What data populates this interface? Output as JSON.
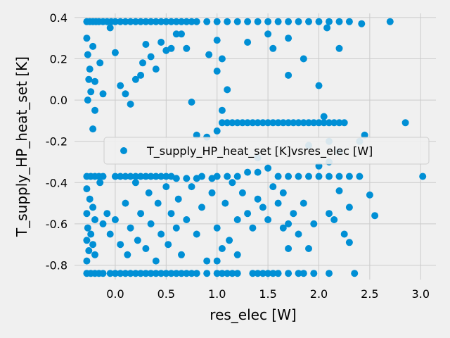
{
  "chart_data": {
    "type": "scatter",
    "xlabel": "res_elec [W]",
    "ylabel": "T_supply_HP_heat_set [K]",
    "xlim": [
      -0.4,
      3.15
    ],
    "ylim": [
      -0.87,
      0.42
    ],
    "xticks": [
      "0.0",
      "0.5",
      "1.0",
      "1.5",
      "2.0",
      "2.5",
      "3.0"
    ],
    "yticks": [
      "0.4",
      "0.2",
      "0.0",
      "-0.2",
      "-0.4",
      "-0.6",
      "-0.8"
    ],
    "grid": true,
    "legend_position": "center-right",
    "colors": {
      "point": "#008fd5",
      "background": "#f0f0f0",
      "grid": "#cbcbcb"
    },
    "series": [
      {
        "name": "T_supply_HP_heat_set [K]vsres_elec [W]",
        "points": [
          [
            -0.28,
            0.38
          ],
          [
            -0.25,
            0.38
          ],
          [
            -0.22,
            0.38
          ],
          [
            -0.19,
            0.38
          ],
          [
            -0.16,
            0.38
          ],
          [
            -0.12,
            0.38
          ],
          [
            -0.08,
            0.38
          ],
          [
            -0.04,
            0.38
          ],
          [
            0.0,
            0.38
          ],
          [
            0.05,
            0.38
          ],
          [
            0.1,
            0.38
          ],
          [
            0.15,
            0.38
          ],
          [
            0.2,
            0.38
          ],
          [
            0.25,
            0.38
          ],
          [
            0.3,
            0.38
          ],
          [
            0.35,
            0.38
          ],
          [
            0.4,
            0.38
          ],
          [
            0.45,
            0.38
          ],
          [
            0.5,
            0.38
          ],
          [
            0.55,
            0.38
          ],
          [
            0.6,
            0.38
          ],
          [
            0.65,
            0.38
          ],
          [
            0.7,
            0.38
          ],
          [
            0.75,
            0.38
          ],
          [
            0.8,
            0.38
          ],
          [
            0.9,
            0.38
          ],
          [
            1.0,
            0.38
          ],
          [
            1.1,
            0.38
          ],
          [
            1.2,
            0.38
          ],
          [
            1.3,
            0.38
          ],
          [
            1.4,
            0.38
          ],
          [
            1.5,
            0.38
          ],
          [
            1.6,
            0.38
          ],
          [
            1.7,
            0.38
          ],
          [
            1.8,
            0.38
          ],
          [
            1.9,
            0.38
          ],
          [
            2.0,
            0.38
          ],
          [
            2.1,
            0.38
          ],
          [
            2.2,
            0.38
          ],
          [
            2.3,
            0.38
          ],
          [
            2.42,
            0.37
          ],
          [
            2.7,
            0.38
          ],
          [
            -0.28,
            0.3
          ],
          [
            -0.27,
            0.22
          ],
          [
            -0.25,
            0.15
          ],
          [
            -0.26,
            0.1
          ],
          [
            -0.22,
            0.26
          ],
          [
            -0.2,
            0.09
          ],
          [
            -0.24,
            0.04
          ],
          [
            -0.27,
            0.0
          ],
          [
            -0.2,
            -0.05
          ],
          [
            -0.22,
            -0.14
          ],
          [
            -0.15,
            0.18
          ],
          [
            -0.12,
            0.03
          ],
          [
            -0.05,
            0.35
          ],
          [
            0.0,
            0.23
          ],
          [
            0.05,
            0.07
          ],
          [
            0.1,
            0.03
          ],
          [
            0.15,
            -0.02
          ],
          [
            0.2,
            0.1
          ],
          [
            0.25,
            0.12
          ],
          [
            0.27,
            0.18
          ],
          [
            0.3,
            0.27
          ],
          [
            0.35,
            0.21
          ],
          [
            0.4,
            0.15
          ],
          [
            0.45,
            0.28
          ],
          [
            0.5,
            0.24
          ],
          [
            0.55,
            0.25
          ],
          [
            0.6,
            0.32
          ],
          [
            0.65,
            0.32
          ],
          [
            0.7,
            0.25
          ],
          [
            0.75,
            -0.01
          ],
          [
            0.92,
            0.22
          ],
          [
            1.0,
            0.29
          ],
          [
            1.05,
            0.2
          ],
          [
            1.0,
            0.14
          ],
          [
            1.1,
            0.05
          ],
          [
            1.05,
            -0.05
          ],
          [
            1.3,
            0.28
          ],
          [
            1.5,
            0.32
          ],
          [
            1.55,
            0.25
          ],
          [
            1.7,
            0.12
          ],
          [
            1.7,
            0.3
          ],
          [
            1.85,
            0.2
          ],
          [
            2.0,
            0.07
          ],
          [
            2.08,
            0.35
          ],
          [
            2.2,
            0.25
          ],
          [
            0.8,
            -0.17
          ],
          [
            0.9,
            -0.18
          ],
          [
            1.0,
            -0.15
          ],
          [
            1.05,
            -0.11
          ],
          [
            1.1,
            -0.11
          ],
          [
            1.15,
            -0.11
          ],
          [
            1.2,
            -0.11
          ],
          [
            1.25,
            -0.11
          ],
          [
            1.3,
            -0.11
          ],
          [
            1.35,
            -0.11
          ],
          [
            1.4,
            -0.11
          ],
          [
            1.45,
            -0.11
          ],
          [
            1.5,
            -0.11
          ],
          [
            1.55,
            -0.11
          ],
          [
            1.6,
            -0.11
          ],
          [
            1.65,
            -0.11
          ],
          [
            1.7,
            -0.11
          ],
          [
            1.75,
            -0.11
          ],
          [
            1.8,
            -0.11
          ],
          [
            1.85,
            -0.11
          ],
          [
            1.9,
            -0.11
          ],
          [
            1.95,
            -0.11
          ],
          [
            2.0,
            -0.11
          ],
          [
            2.05,
            -0.11
          ],
          [
            2.1,
            -0.11
          ],
          [
            2.15,
            -0.11
          ],
          [
            2.2,
            -0.11
          ],
          [
            2.25,
            -0.11
          ],
          [
            2.45,
            -0.17
          ],
          [
            2.85,
            -0.11
          ],
          [
            1.9,
            -0.22
          ],
          [
            2.05,
            -0.08
          ],
          [
            2.1,
            -0.2
          ],
          [
            2.2,
            -0.25
          ],
          [
            2.4,
            -0.2
          ],
          [
            -0.28,
            -0.37
          ],
          [
            -0.24,
            -0.37
          ],
          [
            -0.2,
            -0.37
          ],
          [
            -0.16,
            -0.37
          ],
          [
            -0.12,
            -0.37
          ],
          [
            0.0,
            -0.37
          ],
          [
            0.05,
            -0.37
          ],
          [
            0.1,
            -0.37
          ],
          [
            0.15,
            -0.37
          ],
          [
            0.2,
            -0.37
          ],
          [
            0.25,
            -0.37
          ],
          [
            0.3,
            -0.37
          ],
          [
            0.35,
            -0.37
          ],
          [
            0.4,
            -0.37
          ],
          [
            0.45,
            -0.37
          ],
          [
            0.5,
            -0.37
          ],
          [
            0.55,
            -0.37
          ],
          [
            0.6,
            -0.38
          ],
          [
            0.7,
            -0.38
          ],
          [
            0.8,
            -0.38
          ],
          [
            0.85,
            -0.37
          ],
          [
            0.95,
            -0.38
          ],
          [
            1.0,
            -0.37
          ],
          [
            1.1,
            -0.37
          ],
          [
            1.2,
            -0.37
          ],
          [
            1.3,
            -0.35
          ],
          [
            1.4,
            -0.35
          ],
          [
            1.5,
            -0.33
          ],
          [
            1.6,
            -0.37
          ],
          [
            1.7,
            -0.37
          ],
          [
            1.8,
            -0.37
          ],
          [
            1.9,
            -0.37
          ],
          [
            2.0,
            -0.37
          ],
          [
            2.1,
            -0.37
          ],
          [
            2.2,
            -0.37
          ],
          [
            2.3,
            -0.37
          ],
          [
            2.4,
            -0.37
          ],
          [
            3.02,
            -0.37
          ],
          [
            2.0,
            -0.32
          ],
          [
            2.1,
            -0.3
          ],
          [
            1.4,
            -0.28
          ],
          [
            -0.28,
            -0.43
          ],
          [
            -0.25,
            -0.48
          ],
          [
            -0.22,
            -0.52
          ],
          [
            -0.28,
            -0.55
          ],
          [
            -0.2,
            -0.58
          ],
          [
            -0.27,
            -0.62
          ],
          [
            -0.24,
            -0.65
          ],
          [
            -0.28,
            -0.68
          ],
          [
            -0.22,
            -0.7
          ],
          [
            -0.26,
            -0.73
          ],
          [
            -0.2,
            -0.75
          ],
          [
            -0.28,
            -0.78
          ],
          [
            -0.15,
            -0.4
          ],
          [
            -0.12,
            -0.6
          ],
          [
            -0.08,
            -0.55
          ],
          [
            -0.05,
            -0.65
          ],
          [
            0.0,
            -0.58
          ],
          [
            0.05,
            -0.7
          ],
          [
            0.1,
            -0.5
          ],
          [
            0.12,
            -0.75
          ],
          [
            0.15,
            -0.62
          ],
          [
            0.2,
            -0.4
          ],
          [
            0.22,
            -0.68
          ],
          [
            0.25,
            -0.55
          ],
          [
            0.3,
            -0.72
          ],
          [
            0.33,
            -0.45
          ],
          [
            0.35,
            -0.6
          ],
          [
            0.4,
            -0.78
          ],
          [
            0.42,
            -0.5
          ],
          [
            0.45,
            -0.65
          ],
          [
            0.5,
            -0.42
          ],
          [
            0.52,
            -0.7
          ],
          [
            0.55,
            -0.55
          ],
          [
            0.6,
            -0.62
          ],
          [
            0.62,
            -0.48
          ],
          [
            0.65,
            -0.75
          ],
          [
            0.7,
            -0.58
          ],
          [
            0.75,
            -0.42
          ],
          [
            0.8,
            -0.65
          ],
          [
            0.85,
            -0.52
          ],
          [
            0.9,
            -0.78
          ],
          [
            0.95,
            -0.45
          ],
          [
            1.0,
            -0.62
          ],
          [
            1.05,
            -0.72
          ],
          [
            1.08,
            -0.5
          ],
          [
            1.12,
            -0.68
          ],
          [
            1.15,
            -0.4
          ],
          [
            1.2,
            -0.58
          ],
          [
            1.25,
            -0.45
          ],
          [
            1.3,
            -0.55
          ],
          [
            1.35,
            -0.62
          ],
          [
            1.4,
            -0.48
          ],
          [
            1.45,
            -0.52
          ],
          [
            1.5,
            -0.58
          ],
          [
            1.55,
            -0.42
          ],
          [
            1.6,
            -0.5
          ],
          [
            1.65,
            -0.45
          ],
          [
            1.7,
            -0.6
          ],
          [
            1.75,
            -0.55
          ],
          [
            1.8,
            -0.65
          ],
          [
            1.85,
            -0.5
          ],
          [
            1.9,
            -0.72
          ],
          [
            1.95,
            -0.6
          ],
          [
            2.1,
            -0.55
          ],
          [
            2.15,
            -0.58
          ],
          [
            2.2,
            -0.44
          ],
          [
            2.3,
            -0.52
          ],
          [
            2.5,
            -0.46
          ],
          [
            2.55,
            -0.56
          ],
          [
            2.25,
            -0.65
          ],
          [
            2.3,
            -0.69
          ],
          [
            1.7,
            -0.72
          ],
          [
            1.65,
            -0.62
          ],
          [
            1.2,
            -0.75
          ],
          [
            1.0,
            -0.78
          ],
          [
            -0.28,
            -0.84
          ],
          [
            -0.24,
            -0.84
          ],
          [
            -0.2,
            -0.84
          ],
          [
            -0.16,
            -0.84
          ],
          [
            -0.12,
            -0.84
          ],
          [
            -0.05,
            -0.84
          ],
          [
            0.0,
            -0.84
          ],
          [
            0.05,
            -0.84
          ],
          [
            0.1,
            -0.84
          ],
          [
            0.15,
            -0.84
          ],
          [
            0.2,
            -0.84
          ],
          [
            0.25,
            -0.84
          ],
          [
            0.3,
            -0.84
          ],
          [
            0.35,
            -0.84
          ],
          [
            0.4,
            -0.84
          ],
          [
            0.45,
            -0.84
          ],
          [
            0.5,
            -0.84
          ],
          [
            0.55,
            -0.84
          ],
          [
            0.6,
            -0.84
          ],
          [
            0.65,
            -0.84
          ],
          [
            0.7,
            -0.84
          ],
          [
            0.75,
            -0.84
          ],
          [
            0.8,
            -0.84
          ],
          [
            0.9,
            -0.84
          ],
          [
            1.0,
            -0.84
          ],
          [
            1.05,
            -0.84
          ],
          [
            1.1,
            -0.84
          ],
          [
            1.15,
            -0.84
          ],
          [
            1.2,
            -0.84
          ],
          [
            1.35,
            -0.84
          ],
          [
            1.4,
            -0.84
          ],
          [
            1.45,
            -0.84
          ],
          [
            1.5,
            -0.84
          ],
          [
            1.55,
            -0.84
          ],
          [
            1.6,
            -0.84
          ],
          [
            1.7,
            -0.84
          ],
          [
            1.8,
            -0.84
          ],
          [
            1.85,
            -0.84
          ],
          [
            1.95,
            -0.84
          ],
          [
            2.1,
            -0.84
          ],
          [
            2.35,
            -0.84
          ]
        ]
      }
    ]
  }
}
